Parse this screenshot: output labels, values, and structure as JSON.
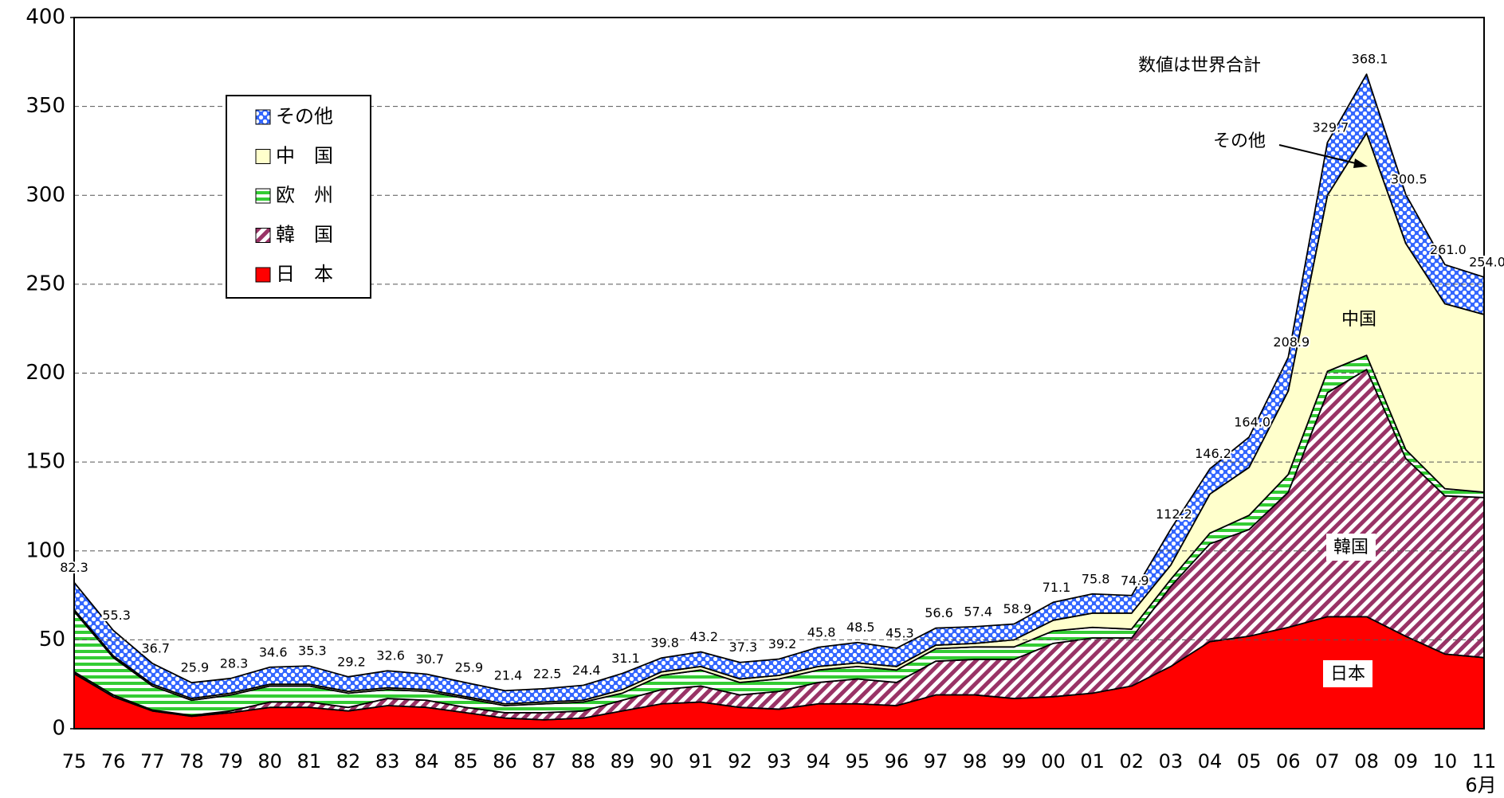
{
  "chart_data": {
    "type": "stacked_area",
    "categories": [
      "75",
      "76",
      "77",
      "78",
      "79",
      "80",
      "81",
      "82",
      "83",
      "84",
      "85",
      "86",
      "87",
      "88",
      "89",
      "90",
      "91",
      "92",
      "93",
      "94",
      "95",
      "96",
      "97",
      "98",
      "99",
      "00",
      "01",
      "02",
      "03",
      "04",
      "05",
      "06",
      "07",
      "08",
      "09",
      "10",
      "11"
    ],
    "x_note": "6月",
    "series": [
      {
        "name": "日　本",
        "color": "#ff0000",
        "pattern": "solid",
        "values": [
          31,
          18,
          10,
          7,
          9,
          12,
          12,
          10,
          13,
          12,
          9,
          6,
          5,
          6,
          10,
          14,
          15,
          12,
          11,
          14,
          14,
          13,
          19,
          19,
          17,
          18,
          20,
          24,
          35,
          49,
          52,
          57,
          63,
          63,
          52,
          42,
          40
        ]
      },
      {
        "name": "韓　国",
        "color": "#993366",
        "pattern": "diagonal",
        "values": [
          1,
          1,
          0.5,
          0.5,
          1,
          3,
          3,
          2,
          4,
          4,
          3,
          3,
          4,
          4,
          6,
          8,
          9,
          7,
          10,
          12,
          14,
          13,
          19,
          20,
          22,
          30,
          31,
          27,
          45,
          55,
          60,
          76,
          126,
          139,
          100,
          89,
          90
        ]
      },
      {
        "name": "欧　州",
        "color": "#33cc33",
        "pattern": "hstripes",
        "values": [
          34,
          21,
          13.5,
          8.5,
          9,
          9,
          9,
          8,
          5,
          5,
          5,
          4,
          5,
          5,
          4,
          8,
          9,
          7,
          7,
          7,
          7,
          7,
          7,
          7,
          7,
          7,
          6,
          5,
          4,
          6,
          8,
          10,
          12,
          8,
          5,
          4,
          3
        ]
      },
      {
        "name": "中　国",
        "color": "#ffffcc",
        "pattern": "solid",
        "values": [
          1,
          1,
          1,
          1,
          1,
          1,
          1,
          1,
          1,
          1,
          1,
          1,
          1,
          1,
          2,
          2,
          2,
          2,
          2,
          2,
          2,
          2,
          2,
          2,
          4,
          6,
          8,
          9,
          8,
          22,
          27,
          47,
          99,
          125,
          116,
          104,
          100
        ]
      },
      {
        "name": "その他",
        "color": "#3366ff",
        "pattern": "dots",
        "values": [
          15.3,
          14.3,
          11.7,
          8.9,
          8.3,
          9.6,
          10.3,
          8.2,
          9.6,
          8.7,
          7.9,
          7.4,
          7.5,
          8.4,
          9.1,
          7.8,
          8.2,
          9.3,
          9.2,
          10.8,
          11.5,
          10.3,
          9.6,
          9.4,
          8.9,
          10.1,
          10.8,
          9.9,
          20.2,
          14.2,
          17,
          18.9,
          29.7,
          33.1,
          27.5,
          22,
          21
        ]
      }
    ],
    "totals": {
      "values": [
        82.3,
        55.3,
        36.7,
        25.9,
        28.3,
        34.6,
        35.3,
        29.2,
        32.6,
        30.7,
        25.9,
        21.4,
        22.5,
        24.4,
        31.1,
        39.8,
        43.2,
        37.3,
        39.2,
        45.8,
        48.5,
        45.3,
        56.6,
        57.4,
        58.9,
        71.1,
        75.8,
        74.9,
        112.2,
        146.2,
        164.0,
        208.9,
        329.7,
        368.1,
        300.5,
        261.0,
        254.0
      ],
      "value_labels": [
        "82.3",
        "55.3",
        "36.7",
        "25.9",
        "28.3",
        "34.6",
        "35.3",
        "29.2",
        "32.6",
        "30.7",
        "25.9",
        "21.4",
        "22.5",
        "24.4",
        "31.1",
        "39.8",
        "43.2",
        "37.3",
        "39.2",
        "45.8",
        "48.5",
        "45.3",
        "56.6",
        "57.4",
        "58.9",
        "71.1",
        "75.8",
        "74.9",
        "112.2",
        "146.2",
        "164.0",
        "208.9",
        "329.7",
        "368.1",
        "300.5",
        "261.0",
        "254.0"
      ]
    },
    "ylim": [
      0,
      400
    ],
    "yticks": [
      0,
      50,
      100,
      150,
      200,
      250,
      300,
      350,
      400
    ],
    "grid": true,
    "annotations": {
      "note": "数値は世界合計",
      "other_arrow": "その他",
      "china": "中国",
      "korea": "韓国",
      "japan": "日本"
    }
  }
}
